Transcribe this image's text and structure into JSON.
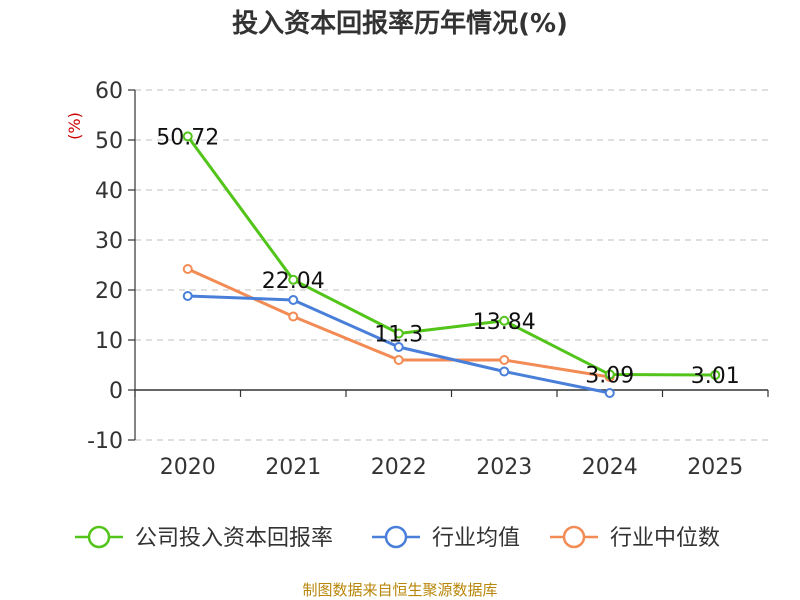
{
  "chart_data": {
    "type": "line",
    "title": "投入资本回报率历年情况(%)",
    "ylabel": "(%)",
    "xlabel": "",
    "categories": [
      "2020",
      "2021",
      "2022",
      "2023",
      "2024",
      "2025"
    ],
    "ylim": [
      -10,
      60
    ],
    "yticks": [
      60,
      50,
      40,
      30,
      20,
      10,
      0,
      -10
    ],
    "grid": true,
    "legend_position": "bottom",
    "series": [
      {
        "name": "公司投入资本回报率",
        "color": "#52c41a",
        "values": [
          50.72,
          22.04,
          11.3,
          13.84,
          3.09,
          3.01
        ],
        "labels": [
          "50.72",
          "22.04",
          "11.3",
          "13.84",
          "3.09",
          "3.01"
        ]
      },
      {
        "name": "行业均值",
        "color": "#4a7fd9",
        "values": [
          18.8,
          18.0,
          8.6,
          3.7,
          -0.6,
          null
        ]
      },
      {
        "name": "行业中位数",
        "color": "#f28b54",
        "values": [
          24.2,
          14.7,
          6.0,
          6.0,
          2.6,
          null
        ]
      }
    ],
    "source": "制图数据来自恒生聚源数据库"
  }
}
